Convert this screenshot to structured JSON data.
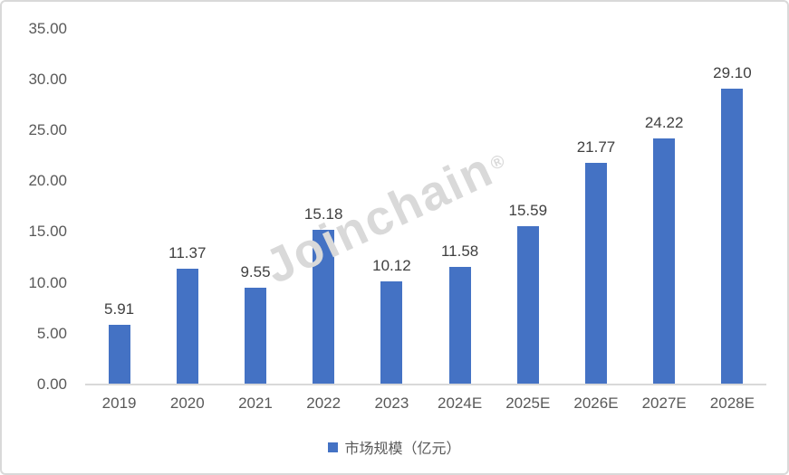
{
  "watermark": {
    "text": "Joinchain",
    "mark": "®"
  },
  "legend": {
    "label": "市场规模（亿元）"
  },
  "colors": {
    "bar": "#4472C4",
    "axis_line": "#d9d9d9",
    "tick_text": "#595959",
    "value_text": "#404040",
    "watermark": "#d9d9d9",
    "frame_border": "#d9d9d9"
  },
  "chart_data": {
    "type": "bar",
    "title": "",
    "xlabel": "",
    "ylabel": "",
    "series_name": "市场规模（亿元）",
    "categories": [
      "2019",
      "2020",
      "2021",
      "2022",
      "2023",
      "2024E",
      "2025E",
      "2026E",
      "2027E",
      "2028E"
    ],
    "values": [
      5.91,
      11.37,
      9.55,
      15.18,
      10.12,
      11.58,
      15.59,
      21.77,
      24.22,
      29.1
    ],
    "value_labels": [
      "5.91",
      "11.37",
      "9.55",
      "15.18",
      "10.12",
      "11.58",
      "15.59",
      "21.77",
      "24.22",
      "29.10"
    ],
    "ylim": [
      0,
      35
    ],
    "ytick_step": 5,
    "ytick_labels": [
      "0.00",
      "5.00",
      "10.00",
      "15.00",
      "20.00",
      "25.00",
      "30.00",
      "35.00"
    ],
    "grid": false,
    "legend_position": "bottom",
    "bar_color": "#4472C4"
  }
}
